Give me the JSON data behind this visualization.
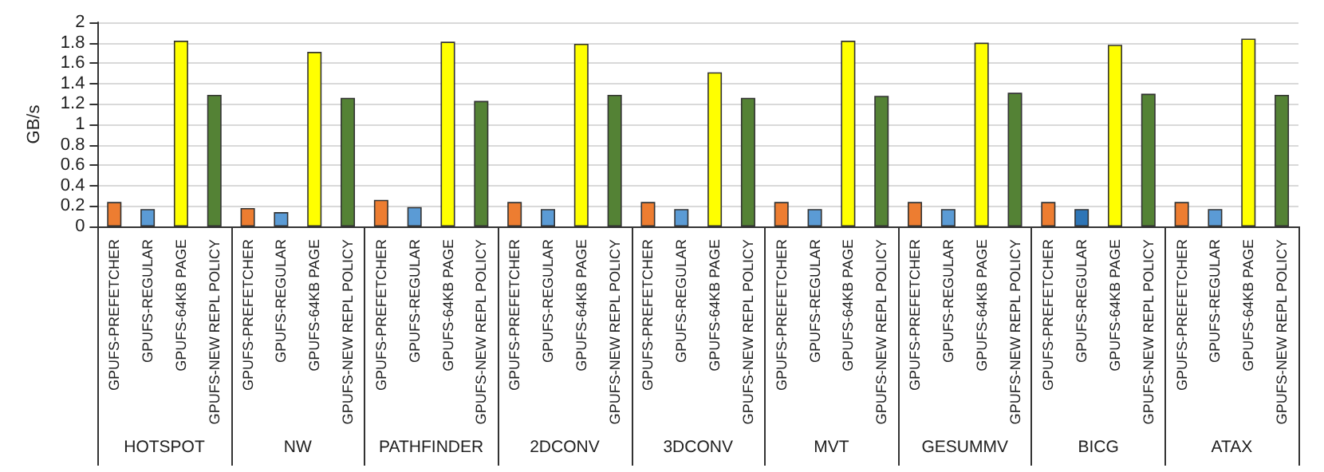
{
  "chart_data": {
    "type": "bar",
    "ylabel": "GB/s",
    "categories": [
      "GPUFS-PREFETCHER",
      "GPUFS-REGULAR",
      "GPUFS-64KB PAGE",
      "GPUFS-NEW REPL POLICY",
      "GPUFS-PREFETCHER",
      "GPUFS-REGULAR",
      "GPUFS-64KB PAGE",
      "GPUFS-NEW REPL POLICY",
      "GPUFS-PREFETCHER",
      "GPUFS-REGULAR",
      "GPUFS-64KB PAGE",
      "GPUFS-NEW REPL POLICY",
      "GPUFS-PREFETCHER",
      "GPUFS-REGULAR",
      "GPUFS-64KB PAGE",
      "GPUFS-NEW REPL POLICY",
      "GPUFS-PREFETCHER",
      "GPUFS-REGULAR",
      "GPUFS-64KB PAGE",
      "GPUFS-NEW REPL POLICY",
      "GPUFS-PREFETCHER",
      "GPUFS-REGULAR",
      "GPUFS-64KB PAGE",
      "GPUFS-NEW REPL POLICY",
      "GPUFS-PREFETCHER",
      "GPUFS-REGULAR",
      "GPUFS-64KB PAGE",
      "GPUFS-NEW REPL POLICY",
      "GPUFS-PREFETCHER",
      "GPUFS-REGULAR",
      "GPUFS-64KB PAGE",
      "GPUFS-NEW REPL POLICY",
      "GPUFS-PREFETCHER",
      "GPUFS-REGULAR",
      "GPUFS-64KB PAGE",
      "GPUFS-NEW REPL POLICY"
    ],
    "values": [
      0.24,
      0.17,
      1.82,
      1.29,
      0.18,
      0.14,
      1.71,
      1.26,
      0.26,
      0.19,
      1.81,
      1.23,
      0.24,
      0.17,
      1.79,
      1.29,
      0.24,
      0.17,
      1.51,
      1.26,
      0.24,
      0.17,
      1.82,
      1.28,
      0.24,
      0.17,
      1.8,
      1.31,
      0.24,
      0.17,
      1.78,
      1.3,
      0.24,
      0.17,
      1.84,
      1.29
    ],
    "colors": [
      "#ed7d31",
      "#5b9bd5",
      "#ffff00",
      "#548235",
      "#ed7d31",
      "#5b9bd5",
      "#ffff00",
      "#548235",
      "#ed7d31",
      "#5b9bd5",
      "#ffff00",
      "#548235",
      "#ed7d31",
      "#5b9bd5",
      "#ffff00",
      "#548235",
      "#ed7d31",
      "#5b9bd5",
      "#ffff00",
      "#548235",
      "#ed7d31",
      "#5b9bd5",
      "#ffff00",
      "#548235",
      "#ed7d31",
      "#5b9bd5",
      "#ffff00",
      "#548235",
      "#ed7d31",
      "#2e75b6",
      "#ffff00",
      "#548235",
      "#ed7d31",
      "#5b9bd5",
      "#ffff00",
      "#548235"
    ],
    "annotations": [
      "HOTSPOT",
      "NW",
      "PATHFINDER",
      "2DCONV",
      "3DCONV",
      "MVT",
      "GESUMMV",
      "BICG",
      "ATAX"
    ],
    "ylim": [
      0,
      2
    ],
    "yticks": [
      0,
      0.2,
      0.4,
      0.6,
      0.8,
      1,
      1.2,
      1.4,
      1.6,
      1.8,
      2
    ],
    "grid": "y"
  }
}
